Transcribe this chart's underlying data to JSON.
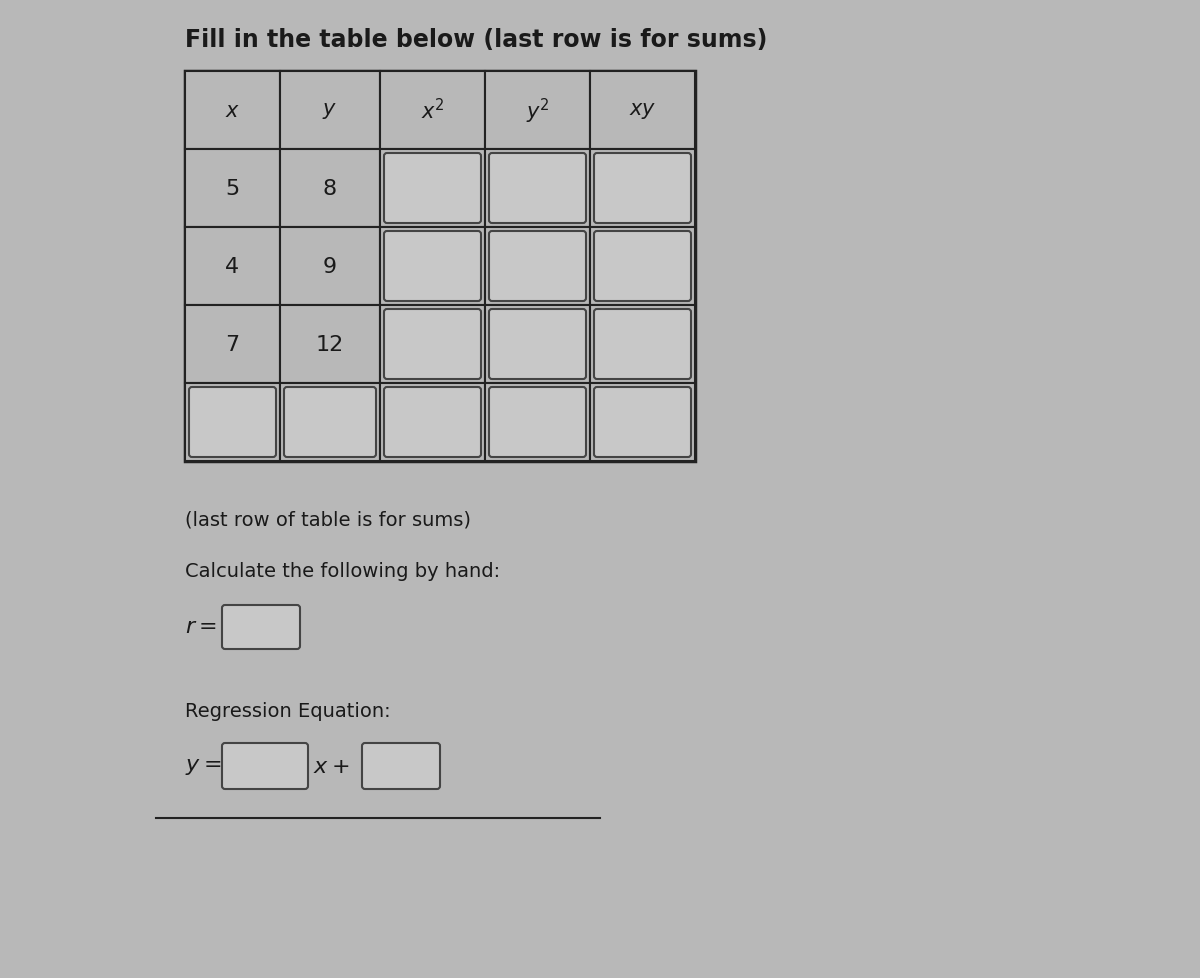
{
  "title": "Fill in the table below (last row is for sums)",
  "title_fontsize": 17,
  "bg_color": "#b8b8b8",
  "cell_fill": "#b8b8b8",
  "input_box_fill": "#c8c8c8",
  "headers": [
    "x",
    "y",
    "x^2",
    "y^2",
    "xy"
  ],
  "data_rows": [
    [
      "5",
      "8",
      "",
      "",
      ""
    ],
    [
      "4",
      "9",
      "",
      "",
      ""
    ],
    [
      "7",
      "12",
      "",
      "",
      ""
    ],
    [
      "",
      "",
      "",
      "",
      ""
    ]
  ],
  "note_text": "(last row of table is for sums)",
  "calc_text": "Calculate the following by hand:",
  "reg_label": "Regression Equation:",
  "font_color": "#1a1a1a",
  "box_border_color": "#444444",
  "table_border_color": "#222222",
  "text_fontsize": 14,
  "cell_fontsize": 16
}
